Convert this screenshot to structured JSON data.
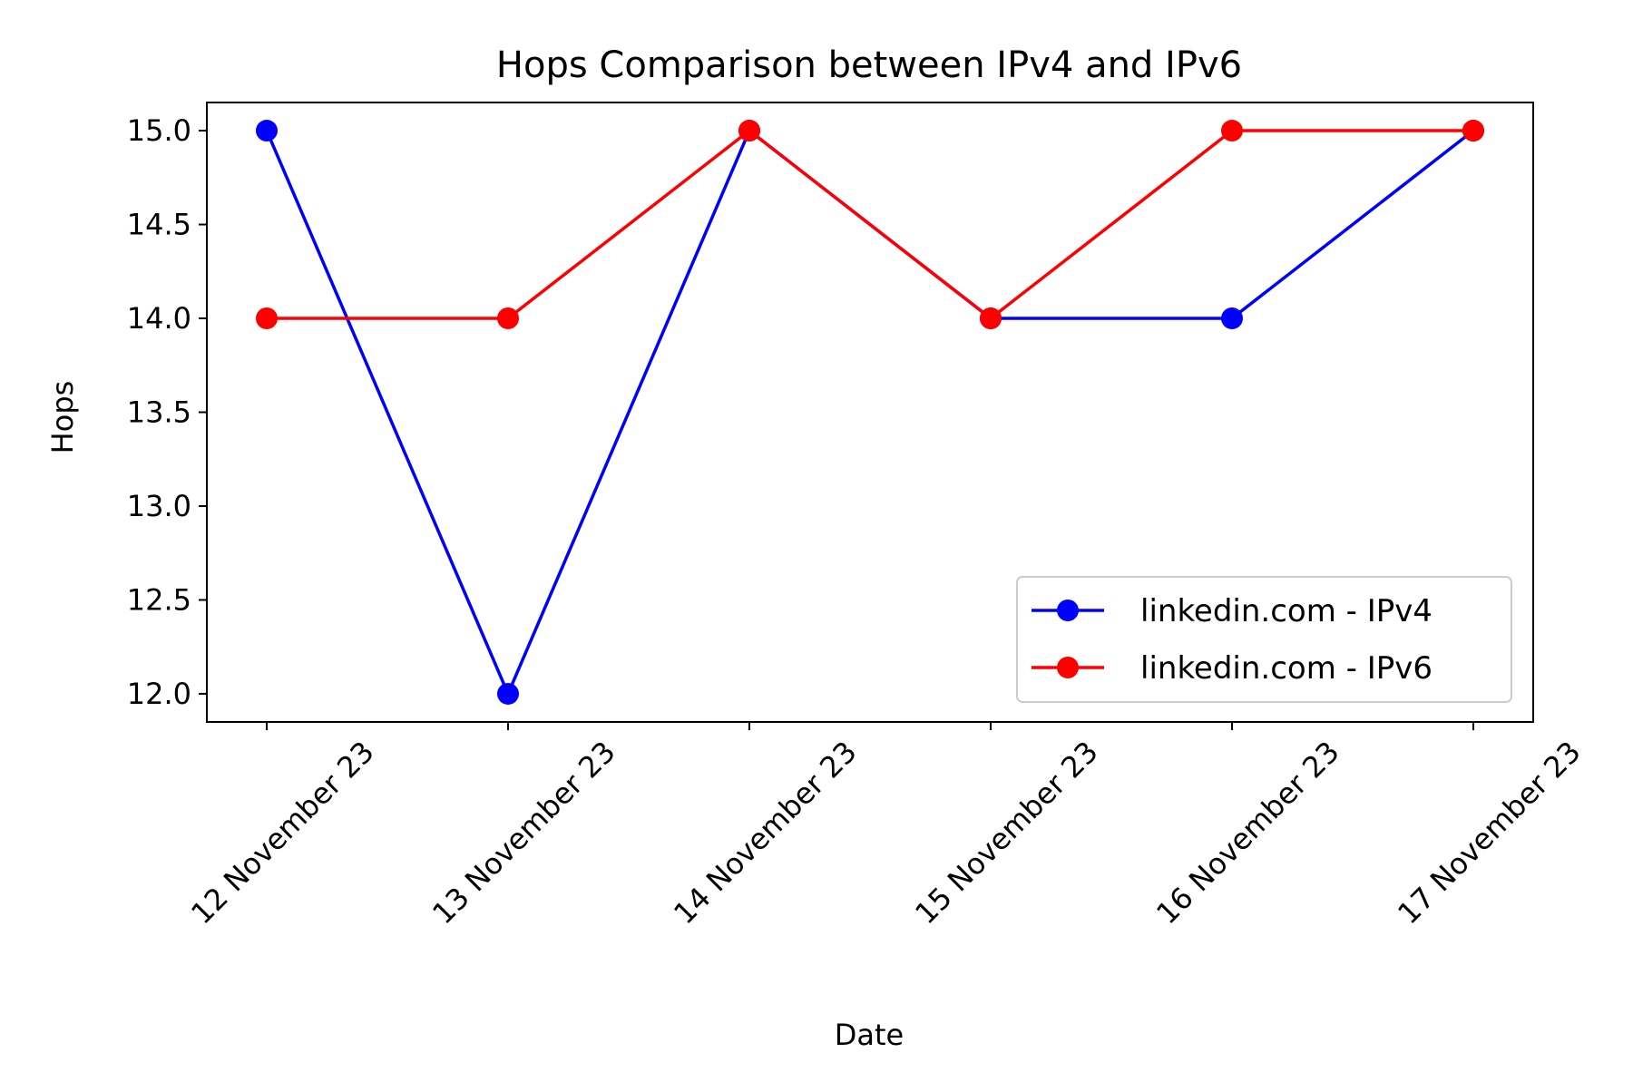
{
  "chart_data": {
    "type": "line",
    "title": "Hops Comparison between IPv4 and IPv6",
    "xlabel": "Date",
    "ylabel": "Hops",
    "categories": [
      "12 November 23",
      "13 November 23",
      "14 November 23",
      "15 November 23",
      "16 November 23",
      "17 November 23"
    ],
    "ylim": [
      11.85,
      15.15
    ],
    "yticks": [
      "12.0",
      "12.5",
      "13.0",
      "13.5",
      "14.0",
      "14.5",
      "15.0"
    ],
    "grid": false,
    "legend_position": "lower-right",
    "series": [
      {
        "name": "linkedin.com - IPv4",
        "color": "#0000ff",
        "values": [
          15,
          12,
          15,
          14,
          14,
          15
        ]
      },
      {
        "name": "linkedin.com - IPv6",
        "color": "#ff0000",
        "values": [
          14,
          14,
          15,
          14,
          15,
          15
        ]
      }
    ]
  }
}
